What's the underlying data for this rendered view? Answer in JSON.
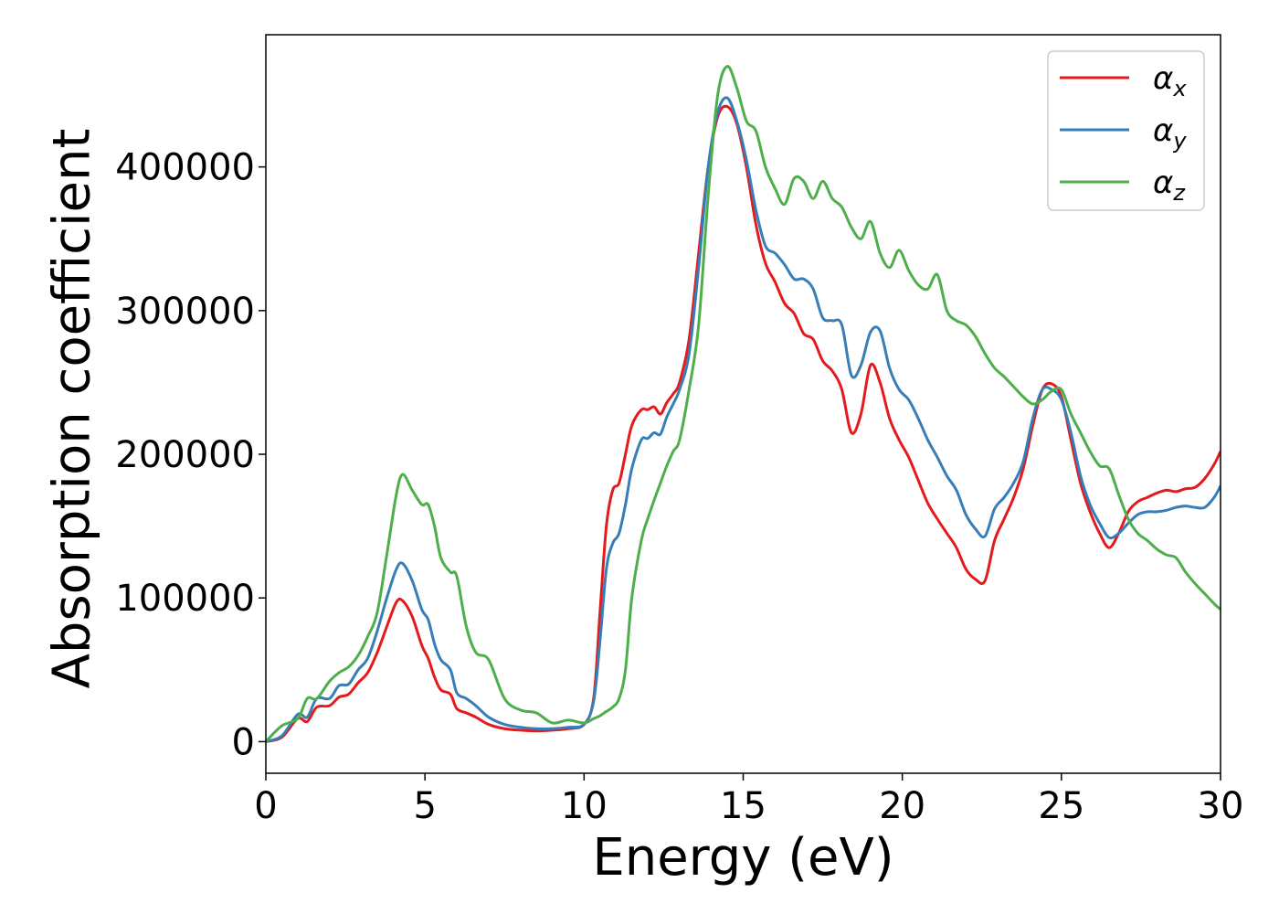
{
  "chart_data": {
    "type": "line",
    "xlabel": "Energy (eV)",
    "ylabel": "Absorption coefficient",
    "xlim": [
      0,
      30
    ],
    "ylim": [
      -22000,
      492000
    ],
    "xticks": [
      0,
      5,
      10,
      15,
      20,
      25,
      30
    ],
    "xtick_labels": [
      "0",
      "5",
      "10",
      "15",
      "20",
      "25",
      "30"
    ],
    "yticks": [
      0,
      100000,
      200000,
      300000,
      400000
    ],
    "ytick_labels": [
      "0",
      "100000",
      "200000",
      "300000",
      "400000"
    ],
    "grid": false,
    "legend_position": "top-right",
    "series": [
      {
        "name": "α_x",
        "label_main": "α",
        "label_sub": "x",
        "color": "#e41a1c",
        "x": [
          0,
          0.5,
          1.0,
          1.3,
          1.6,
          2.0,
          2.3,
          2.6,
          2.9,
          3.2,
          3.5,
          3.8,
          4.1,
          4.3,
          4.6,
          4.9,
          5.1,
          5.3,
          5.5,
          5.8,
          6.0,
          6.3,
          6.6,
          7.0,
          7.5,
          8.0,
          8.5,
          9.0,
          9.5,
          10.0,
          10.3,
          10.5,
          10.7,
          10.9,
          11.1,
          11.3,
          11.5,
          11.8,
          12.0,
          12.2,
          12.4,
          12.6,
          12.8,
          13.0,
          13.3,
          13.6,
          13.9,
          14.2,
          14.5,
          14.8,
          15.1,
          15.4,
          15.7,
          16.0,
          16.3,
          16.6,
          16.9,
          17.2,
          17.5,
          17.8,
          18.1,
          18.4,
          18.7,
          19.0,
          19.3,
          19.6,
          19.9,
          20.2,
          20.5,
          20.8,
          21.1,
          21.4,
          21.7,
          22.0,
          22.3,
          22.6,
          22.9,
          23.2,
          23.5,
          23.8,
          24.1,
          24.4,
          24.7,
          25.0,
          25.3,
          25.6,
          25.9,
          26.2,
          26.5,
          26.8,
          27.1,
          27.4,
          27.7,
          28.0,
          28.3,
          28.6,
          28.9,
          29.2,
          29.5,
          29.8,
          30.0
        ],
        "y": [
          0,
          3000,
          16000,
          14000,
          24000,
          25000,
          31000,
          33000,
          41000,
          48000,
          62000,
          80000,
          97000,
          98000,
          87000,
          67000,
          58000,
          45000,
          36000,
          33000,
          23000,
          20000,
          17000,
          12000,
          9000,
          8000,
          7500,
          8000,
          9000,
          12000,
          30000,
          90000,
          150000,
          175000,
          180000,
          200000,
          220000,
          231000,
          231000,
          233000,
          228000,
          236000,
          242000,
          250000,
          280000,
          340000,
          400000,
          435000,
          442000,
          430000,
          400000,
          360000,
          333000,
          320000,
          305000,
          298000,
          284000,
          280000,
          265000,
          258000,
          245000,
          215000,
          228000,
          262000,
          250000,
          225000,
          210000,
          198000,
          182000,
          166000,
          155000,
          145000,
          135000,
          120000,
          113000,
          112000,
          140000,
          155000,
          170000,
          190000,
          220000,
          245000,
          249000,
          240000,
          210000,
          180000,
          160000,
          145000,
          135000,
          145000,
          160000,
          167000,
          170000,
          173000,
          175000,
          174000,
          176000,
          177000,
          183000,
          193000,
          202000
        ]
      },
      {
        "name": "α_y",
        "label_main": "α",
        "label_sub": "y",
        "color": "#377eb8",
        "x": [
          0,
          0.5,
          1.0,
          1.3,
          1.6,
          2.0,
          2.3,
          2.6,
          2.9,
          3.2,
          3.5,
          3.8,
          4.1,
          4.3,
          4.6,
          4.9,
          5.1,
          5.3,
          5.5,
          5.8,
          6.0,
          6.3,
          6.6,
          7.0,
          7.5,
          8.0,
          8.5,
          9.0,
          9.5,
          10.0,
          10.3,
          10.5,
          10.7,
          10.9,
          11.1,
          11.3,
          11.5,
          11.8,
          12.0,
          12.2,
          12.4,
          12.6,
          12.8,
          13.0,
          13.3,
          13.6,
          13.9,
          14.2,
          14.5,
          14.8,
          15.1,
          15.4,
          15.7,
          16.0,
          16.3,
          16.6,
          16.9,
          17.2,
          17.5,
          17.8,
          18.1,
          18.4,
          18.7,
          19.0,
          19.3,
          19.6,
          19.9,
          20.2,
          20.5,
          20.8,
          21.1,
          21.4,
          21.7,
          22.0,
          22.3,
          22.6,
          22.9,
          23.2,
          23.5,
          23.8,
          24.1,
          24.4,
          24.7,
          25.0,
          25.3,
          25.6,
          25.9,
          26.2,
          26.5,
          26.8,
          27.1,
          27.4,
          27.7,
          28.0,
          28.3,
          28.6,
          28.9,
          29.2,
          29.5,
          29.8,
          30.0
        ],
        "y": [
          0,
          4000,
          19000,
          17000,
          30000,
          30000,
          39000,
          40000,
          50000,
          58000,
          77000,
          100000,
          120000,
          124000,
          112000,
          92000,
          85000,
          68000,
          57000,
          50000,
          34000,
          30000,
          25000,
          17000,
          12000,
          10000,
          9000,
          9000,
          10000,
          12000,
          28000,
          70000,
          120000,
          138000,
          145000,
          165000,
          190000,
          210000,
          211000,
          215000,
          214000,
          226000,
          235000,
          245000,
          270000,
          330000,
          400000,
          438000,
          448000,
          432000,
          405000,
          370000,
          345000,
          340000,
          332000,
          322000,
          322000,
          315000,
          295000,
          293000,
          290000,
          255000,
          262000,
          285000,
          286000,
          260000,
          245000,
          238000,
          225000,
          210000,
          198000,
          185000,
          175000,
          158000,
          148000,
          143000,
          162000,
          170000,
          180000,
          195000,
          225000,
          245000,
          245000,
          238000,
          215000,
          185000,
          165000,
          152000,
          142000,
          145000,
          152000,
          158000,
          160000,
          160000,
          161000,
          163000,
          164000,
          163000,
          163000,
          170000,
          178000
        ]
      },
      {
        "name": "α_z",
        "label_main": "α",
        "label_sub": "z",
        "color": "#4daf4a",
        "x": [
          0,
          0.5,
          1.0,
          1.3,
          1.6,
          2.0,
          2.3,
          2.6,
          2.9,
          3.2,
          3.5,
          3.8,
          4.1,
          4.3,
          4.6,
          4.9,
          5.1,
          5.3,
          5.5,
          5.8,
          6.0,
          6.3,
          6.6,
          7.0,
          7.5,
          8.0,
          8.5,
          9.0,
          9.5,
          10.0,
          10.3,
          10.5,
          10.7,
          10.9,
          11.1,
          11.3,
          11.5,
          11.8,
          12.0,
          12.2,
          12.4,
          12.6,
          12.8,
          13.0,
          13.3,
          13.6,
          13.9,
          14.2,
          14.5,
          14.8,
          15.1,
          15.4,
          15.7,
          16.0,
          16.3,
          16.6,
          16.9,
          17.2,
          17.5,
          17.8,
          18.1,
          18.4,
          18.7,
          19.0,
          19.3,
          19.6,
          19.9,
          20.2,
          20.5,
          20.8,
          21.1,
          21.4,
          21.7,
          22.0,
          22.3,
          22.6,
          22.9,
          23.2,
          23.5,
          23.8,
          24.1,
          24.4,
          24.7,
          25.0,
          25.3,
          25.6,
          25.9,
          26.2,
          26.5,
          26.8,
          27.1,
          27.4,
          27.7,
          28.0,
          28.3,
          28.6,
          28.9,
          29.2,
          29.5,
          29.8,
          30.0
        ],
        "y": [
          0,
          11000,
          16000,
          30000,
          30000,
          42000,
          48000,
          52000,
          60000,
          73000,
          90000,
          130000,
          172000,
          186000,
          175000,
          165000,
          165000,
          150000,
          128000,
          118000,
          115000,
          80000,
          62000,
          57000,
          30000,
          22000,
          20000,
          13000,
          15000,
          13000,
          16000,
          18000,
          21000,
          24000,
          30000,
          50000,
          100000,
          140000,
          155000,
          168000,
          180000,
          192000,
          202000,
          210000,
          245000,
          290000,
          380000,
          450000,
          470000,
          455000,
          432000,
          425000,
          400000,
          385000,
          374000,
          392000,
          390000,
          378000,
          390000,
          378000,
          372000,
          358000,
          350000,
          362000,
          340000,
          330000,
          342000,
          328000,
          318000,
          315000,
          325000,
          300000,
          293000,
          290000,
          282000,
          270000,
          260000,
          254000,
          247000,
          240000,
          235000,
          238000,
          244000,
          245000,
          228000,
          215000,
          202000,
          192000,
          190000,
          172000,
          155000,
          145000,
          140000,
          134000,
          130000,
          128000,
          118000,
          110000,
          103000,
          96000,
          92000
        ]
      }
    ]
  }
}
